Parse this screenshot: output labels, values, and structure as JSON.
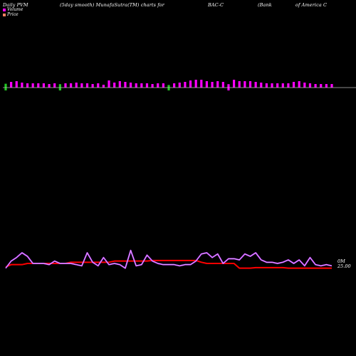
{
  "header": {
    "t1": "Daily PVM",
    "t2": "(5day smooth) MunafaSutra(TM) charts for",
    "t3": "BAC-C",
    "t4": "(Bank",
    "t5": "of America C"
  },
  "legend": {
    "volume": "Volume",
    "price": "Price"
  },
  "axis": {
    "right_top": "0M",
    "right_bottom": "25.00"
  },
  "colors": {
    "background": "#000000",
    "volume_bar": "#ff00ff",
    "volume_bar_green": "#22cc22",
    "baseline": "#bbbbbb",
    "price_line": "#ff0000",
    "pvm_line": "#c040ff",
    "pvm_line_light": "#ffffff",
    "legend_volume": "#ff00ff",
    "legend_price": "#ff8060"
  },
  "chart_data": {
    "type": "line",
    "title": "Daily PVM (5day smooth) MunafaSutra(TM) charts for BAC-C (Bank of America C",
    "x": [
      1,
      2,
      3,
      4,
      5,
      6,
      7,
      8,
      9,
      10,
      11,
      12,
      13,
      14,
      15,
      16,
      17,
      18,
      19,
      20,
      21,
      22,
      23,
      24,
      25,
      26,
      27,
      28,
      29,
      30,
      31,
      32,
      33,
      34,
      35,
      36,
      37,
      38,
      39,
      40,
      41,
      42,
      43,
      44,
      45,
      46,
      47,
      48,
      49,
      50,
      51,
      52,
      53,
      54,
      55,
      56,
      57,
      58,
      59,
      60,
      61
    ],
    "series": [
      {
        "name": "Volume",
        "values": [
          0.9,
          0.8,
          0.9,
          0.7,
          0.6,
          0.6,
          0.6,
          0.6,
          0.5,
          0.6,
          0.8,
          0.6,
          0.6,
          0.7,
          0.6,
          0.6,
          0.5,
          0.6,
          0.4,
          1.0,
          0.7,
          0.9,
          0.8,
          0.7,
          0.6,
          0.6,
          0.6,
          0.5,
          0.6,
          0.6,
          0.6,
          0.6,
          0.7,
          0.8,
          1.0,
          1.1,
          1.1,
          0.9,
          0.8,
          0.9,
          0.8,
          0.8,
          1.1,
          0.9,
          0.9,
          0.9,
          0.8,
          0.7,
          0.6,
          0.6,
          0.6,
          0.6,
          0.6,
          0.8,
          0.9,
          0.7,
          0.6,
          0.5,
          0.5,
          0.5,
          0.5
        ],
        "below": [
          true,
          false,
          false,
          false,
          false,
          false,
          false,
          false,
          false,
          false,
          true,
          false,
          false,
          false,
          false,
          false,
          false,
          false,
          false,
          false,
          false,
          false,
          false,
          false,
          false,
          false,
          false,
          false,
          false,
          false,
          true,
          false,
          false,
          false,
          false,
          false,
          false,
          false,
          false,
          false,
          false,
          true,
          false,
          false,
          false,
          false,
          false,
          false,
          false,
          false,
          false,
          false,
          false,
          false,
          false,
          false,
          false,
          false,
          false,
          false,
          false
        ],
        "green": [
          true,
          false,
          false,
          false,
          false,
          false,
          false,
          false,
          false,
          false,
          true,
          false,
          false,
          false,
          false,
          false,
          false,
          false,
          false,
          false,
          false,
          false,
          false,
          false,
          false,
          false,
          false,
          false,
          false,
          false,
          true,
          false,
          false,
          false,
          false,
          false,
          false,
          false,
          false,
          false,
          false,
          false,
          false,
          false,
          false,
          false,
          false,
          false,
          false,
          false,
          false,
          false,
          false,
          false,
          false,
          false,
          false,
          false,
          false,
          false,
          false
        ]
      },
      {
        "name": "Price",
        "values": [
          25.4,
          25.6,
          25.6,
          25.6,
          25.7,
          25.7,
          25.7,
          25.7,
          25.7,
          25.7,
          25.7,
          25.7,
          25.8,
          25.8,
          25.8,
          25.8,
          25.8,
          25.8,
          25.8,
          25.8,
          25.9,
          25.9,
          25.9,
          25.9,
          25.9,
          25.9,
          25.9,
          25.95,
          25.95,
          25.95,
          25.95,
          25.95,
          25.95,
          25.95,
          25.95,
          25.95,
          25.8,
          25.7,
          25.7,
          25.7,
          25.7,
          25.7,
          25.7,
          25.3,
          25.3,
          25.3,
          25.35,
          25.35,
          25.35,
          25.35,
          25.35,
          25.35,
          25.3,
          25.3,
          25.3,
          25.3,
          25.3,
          25.3,
          25.3,
          25.3,
          25.3
        ]
      },
      {
        "name": "PVM",
        "values": [
          25.3,
          25.9,
          26.2,
          26.6,
          26.3,
          25.7,
          25.7,
          25.7,
          25.6,
          25.9,
          25.7,
          25.7,
          25.7,
          25.6,
          25.5,
          26.6,
          25.8,
          25.5,
          26.2,
          25.6,
          25.7,
          25.6,
          25.3,
          26.8,
          25.5,
          25.6,
          26.4,
          25.9,
          25.7,
          25.6,
          25.6,
          25.6,
          25.5,
          25.6,
          25.6,
          25.9,
          26.5,
          26.6,
          26.2,
          26.5,
          25.7,
          26.1,
          26.1,
          26.0,
          26.5,
          26.3,
          26.6,
          26.0,
          25.8,
          25.8,
          25.7,
          25.8,
          26.0,
          25.7,
          26.0,
          25.5,
          26.2,
          25.6,
          25.5,
          25.6,
          25.5
        ]
      }
    ],
    "ylim": [
      24.5,
      27.5
    ],
    "grid": false,
    "legend_position": "top-left"
  }
}
